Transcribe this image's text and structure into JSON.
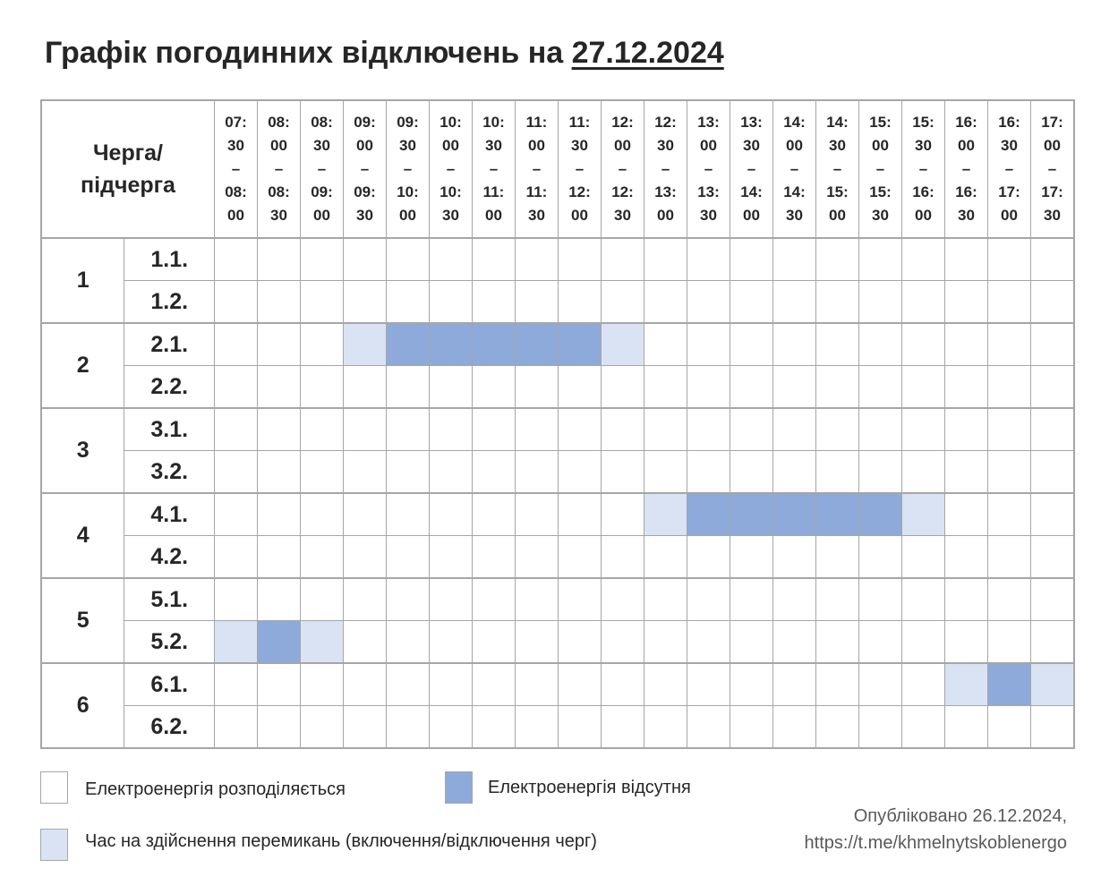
{
  "title": {
    "prefix": "Графік погодинних відключень на ",
    "date": "27.12.2024"
  },
  "table": {
    "corner_line1": "Черга/",
    "corner_line2": "підчерга",
    "slots": [
      [
        "07:",
        "30",
        "–",
        "08:",
        "00"
      ],
      [
        "08:",
        "00",
        "–",
        "08:",
        "30"
      ],
      [
        "08:",
        "30",
        "–",
        "09:",
        "00"
      ],
      [
        "09:",
        "00",
        "–",
        "09:",
        "30"
      ],
      [
        "09:",
        "30",
        "–",
        "10:",
        "00"
      ],
      [
        "10:",
        "00",
        "–",
        "10:",
        "30"
      ],
      [
        "10:",
        "30",
        "–",
        "11:",
        "00"
      ],
      [
        "11:",
        "00",
        "–",
        "11:",
        "30"
      ],
      [
        "11:",
        "30",
        "–",
        "12:",
        "00"
      ],
      [
        "12:",
        "00",
        "–",
        "12:",
        "30"
      ],
      [
        "12:",
        "30",
        "–",
        "13:",
        "00"
      ],
      [
        "13:",
        "00",
        "–",
        "13:",
        "30"
      ],
      [
        "13:",
        "30",
        "–",
        "14:",
        "00"
      ],
      [
        "14:",
        "00",
        "–",
        "14:",
        "30"
      ],
      [
        "14:",
        "30",
        "–",
        "15:",
        "00"
      ],
      [
        "15:",
        "00",
        "–",
        "15:",
        "30"
      ],
      [
        "15:",
        "30",
        "–",
        "16:",
        "00"
      ],
      [
        "16:",
        "00",
        "–",
        "16:",
        "30"
      ],
      [
        "16:",
        "30",
        "–",
        "17:",
        "00"
      ],
      [
        "17:",
        "00",
        "–",
        "17:",
        "30"
      ]
    ],
    "queues": [
      {
        "label": "1",
        "subs": [
          {
            "label": "1.1.",
            "states": [
              "on",
              "on",
              "on",
              "on",
              "on",
              "on",
              "on",
              "on",
              "on",
              "on",
              "on",
              "on",
              "on",
              "on",
              "on",
              "on",
              "on",
              "on",
              "on",
              "on"
            ]
          },
          {
            "label": "1.2.",
            "states": [
              "on",
              "on",
              "on",
              "on",
              "on",
              "on",
              "on",
              "on",
              "on",
              "on",
              "on",
              "on",
              "on",
              "on",
              "on",
              "on",
              "on",
              "on",
              "on",
              "on"
            ]
          }
        ]
      },
      {
        "label": "2",
        "subs": [
          {
            "label": "2.1.",
            "states": [
              "on",
              "on",
              "on",
              "switch",
              "off",
              "off",
              "off",
              "off",
              "off",
              "switch",
              "on",
              "on",
              "on",
              "on",
              "on",
              "on",
              "on",
              "on",
              "on",
              "on"
            ]
          },
          {
            "label": "2.2.",
            "states": [
              "on",
              "on",
              "on",
              "on",
              "on",
              "on",
              "on",
              "on",
              "on",
              "on",
              "on",
              "on",
              "on",
              "on",
              "on",
              "on",
              "on",
              "on",
              "on",
              "on"
            ]
          }
        ]
      },
      {
        "label": "3",
        "subs": [
          {
            "label": "3.1.",
            "states": [
              "on",
              "on",
              "on",
              "on",
              "on",
              "on",
              "on",
              "on",
              "on",
              "on",
              "on",
              "on",
              "on",
              "on",
              "on",
              "on",
              "on",
              "on",
              "on",
              "on"
            ]
          },
          {
            "label": "3.2.",
            "states": [
              "on",
              "on",
              "on",
              "on",
              "on",
              "on",
              "on",
              "on",
              "on",
              "on",
              "on",
              "on",
              "on",
              "on",
              "on",
              "on",
              "on",
              "on",
              "on",
              "on"
            ]
          }
        ]
      },
      {
        "label": "4",
        "subs": [
          {
            "label": "4.1.",
            "states": [
              "on",
              "on",
              "on",
              "on",
              "on",
              "on",
              "on",
              "on",
              "on",
              "on",
              "switch",
              "off",
              "off",
              "off",
              "off",
              "off",
              "switch",
              "on",
              "on",
              "on"
            ]
          },
          {
            "label": "4.2.",
            "states": [
              "on",
              "on",
              "on",
              "on",
              "on",
              "on",
              "on",
              "on",
              "on",
              "on",
              "on",
              "on",
              "on",
              "on",
              "on",
              "on",
              "on",
              "on",
              "on",
              "on"
            ]
          }
        ]
      },
      {
        "label": "5",
        "subs": [
          {
            "label": "5.1.",
            "states": [
              "on",
              "on",
              "on",
              "on",
              "on",
              "on",
              "on",
              "on",
              "on",
              "on",
              "on",
              "on",
              "on",
              "on",
              "on",
              "on",
              "on",
              "on",
              "on",
              "on"
            ]
          },
          {
            "label": "5.2.",
            "states": [
              "switch",
              "off",
              "switch",
              "on",
              "on",
              "on",
              "on",
              "on",
              "on",
              "on",
              "on",
              "on",
              "on",
              "on",
              "on",
              "on",
              "on",
              "on",
              "on",
              "on"
            ]
          }
        ]
      },
      {
        "label": "6",
        "subs": [
          {
            "label": "6.1.",
            "states": [
              "on",
              "on",
              "on",
              "on",
              "on",
              "on",
              "on",
              "on",
              "on",
              "on",
              "on",
              "on",
              "on",
              "on",
              "on",
              "on",
              "on",
              "switch",
              "off",
              "switch"
            ]
          },
          {
            "label": "6.2.",
            "states": [
              "on",
              "on",
              "on",
              "on",
              "on",
              "on",
              "on",
              "on",
              "on",
              "on",
              "on",
              "on",
              "on",
              "on",
              "on",
              "on",
              "on",
              "on",
              "on",
              "on"
            ]
          }
        ]
      }
    ]
  },
  "legend": {
    "on_label": "Електроенергія розподіляється",
    "off_label": "Електроенергія відсутня",
    "switch_label": "Час на здійснення перемикань (включення/відключення черг)"
  },
  "colors": {
    "on": "#ffffff",
    "off": "#8eaadb",
    "switch": "#dae3f3",
    "border": "#a6a6a6"
  },
  "footer": {
    "published": "Опубліковано 26.12.2024,",
    "link": "https://t.me/khmelnytskoblenergo"
  }
}
